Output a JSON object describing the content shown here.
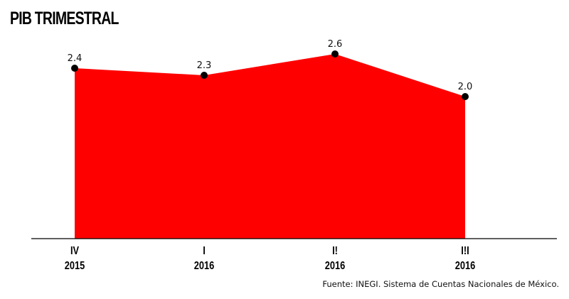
{
  "chart_data": {
    "type": "area",
    "title": "PIB TRIMESTRAL",
    "categories": [
      {
        "quarter": "IV",
        "year": "2015"
      },
      {
        "quarter": "I",
        "year": "2016"
      },
      {
        "quarter": "I!",
        "year": "2016"
      },
      {
        "quarter": "I!I",
        "year": "2016"
      }
    ],
    "values": [
      2.4,
      2.3,
      2.6,
      2.0
    ],
    "value_labels": [
      "2.4",
      "2.3",
      "2.6",
      "2.0"
    ],
    "ylim": [
      0,
      3.2
    ],
    "grid": false,
    "legend": "none",
    "colors": {
      "area": "#ff0000",
      "marker": "#000000",
      "axis": "#000000"
    }
  },
  "source": "Fuente: INEGI. Sistema de Cuentas Nacionales de México."
}
